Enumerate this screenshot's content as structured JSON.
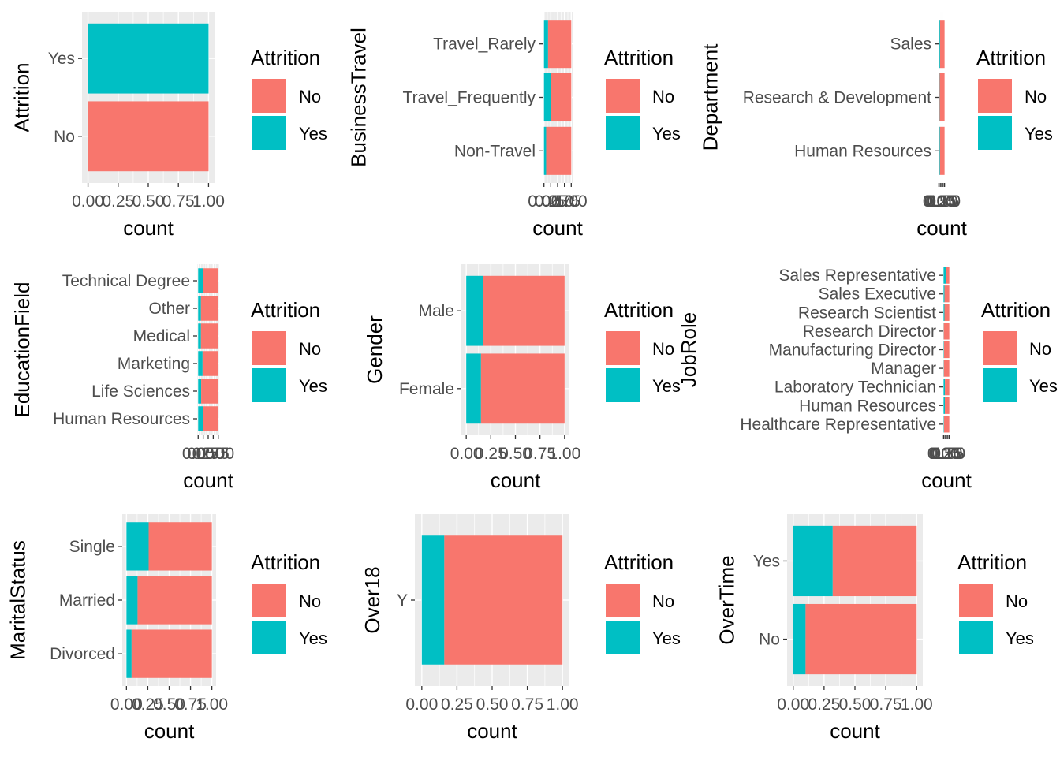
{
  "colors": {
    "No": "#F8766D",
    "Yes": "#00BFC4",
    "panel_bg": "#EBEBEB",
    "grid": "#FFFFFF",
    "tick_text": "#4D4D4D",
    "axis_title": "#000000"
  },
  "legend": {
    "title": "Attrition",
    "entries": [
      {
        "key": "No",
        "label": "No"
      },
      {
        "key": "Yes",
        "label": "Yes"
      }
    ]
  },
  "chart_data": [
    {
      "type": "bar",
      "orientation": "horizontal",
      "position": "fill",
      "ylabel": "Attrition",
      "xlabel": "count",
      "categories": [
        "No",
        "Yes"
      ],
      "x_ticks": [
        "0.00",
        "0.25",
        "0.50",
        "0.75",
        "1.00"
      ],
      "xlim": [
        0,
        1
      ],
      "series": [
        {
          "name": "No",
          "values": [
            1,
            0
          ]
        },
        {
          "name": "Yes",
          "values": [
            0,
            1
          ]
        }
      ],
      "legend_position": "right"
    },
    {
      "type": "bar",
      "orientation": "horizontal",
      "position": "fill",
      "ylabel": "BusinessTravel",
      "xlabel": "count",
      "categories": [
        "Non-Travel",
        "Travel_Frequently",
        "Travel_Rarely"
      ],
      "x_ticks": [
        "0.00",
        "0.25",
        "0.50",
        "0.75",
        "1.00"
      ],
      "xlim": [
        0,
        1
      ],
      "series": [
        {
          "name": "No",
          "values": [
            0.92,
            0.75,
            0.85
          ]
        },
        {
          "name": "Yes",
          "values": [
            0.08,
            0.25,
            0.15
          ]
        }
      ],
      "legend_position": "right"
    },
    {
      "type": "bar",
      "orientation": "horizontal",
      "position": "fill",
      "ylabel": "Department",
      "xlabel": "count",
      "categories": [
        "Human Resources",
        "Research & Development",
        "Sales"
      ],
      "x_ticks": [
        "0.00",
        "0.25",
        "0.50",
        "0.75",
        "1.00"
      ],
      "xlim": [
        0,
        1
      ],
      "series": [
        {
          "name": "No",
          "values": [
            0.81,
            0.86,
            0.79
          ]
        },
        {
          "name": "Yes",
          "values": [
            0.19,
            0.14,
            0.21
          ]
        }
      ],
      "legend_position": "right"
    },
    {
      "type": "bar",
      "orientation": "horizontal",
      "position": "fill",
      "ylabel": "EducationField",
      "xlabel": "count",
      "categories": [
        "Human Resources",
        "Life Sciences",
        "Marketing",
        "Medical",
        "Other",
        "Technical Degree"
      ],
      "x_ticks": [
        "0.00",
        "0.25",
        "0.50",
        "0.75",
        "1.00"
      ],
      "xlim": [
        0,
        1
      ],
      "series": [
        {
          "name": "No",
          "values": [
            0.74,
            0.85,
            0.78,
            0.86,
            0.86,
            0.76
          ]
        },
        {
          "name": "Yes",
          "values": [
            0.26,
            0.15,
            0.22,
            0.14,
            0.14,
            0.24
          ]
        }
      ],
      "legend_position": "right"
    },
    {
      "type": "bar",
      "orientation": "horizontal",
      "position": "fill",
      "ylabel": "Gender",
      "xlabel": "count",
      "categories": [
        "Female",
        "Male"
      ],
      "x_ticks": [
        "0.00",
        "0.25",
        "0.50",
        "0.75",
        "1.00"
      ],
      "xlim": [
        0,
        1
      ],
      "series": [
        {
          "name": "No",
          "values": [
            0.85,
            0.83
          ]
        },
        {
          "name": "Yes",
          "values": [
            0.15,
            0.17
          ]
        }
      ],
      "legend_position": "right"
    },
    {
      "type": "bar",
      "orientation": "horizontal",
      "position": "fill",
      "ylabel": "JobRole",
      "xlabel": "count",
      "categories": [
        "Healthcare Representative",
        "Human Resources",
        "Laboratory Technician",
        "Manager",
        "Manufacturing Director",
        "Research Director",
        "Research Scientist",
        "Sales Executive",
        "Sales Representative"
      ],
      "x_ticks": [
        "0.00",
        "0.25",
        "0.50",
        "0.75",
        "1.00"
      ],
      "xlim": [
        0,
        1
      ],
      "series": [
        {
          "name": "No",
          "values": [
            0.93,
            0.77,
            0.76,
            0.95,
            0.93,
            0.97,
            0.84,
            0.83,
            0.6
          ]
        },
        {
          "name": "Yes",
          "values": [
            0.07,
            0.23,
            0.24,
            0.05,
            0.07,
            0.03,
            0.16,
            0.17,
            0.4
          ]
        }
      ],
      "legend_position": "right"
    },
    {
      "type": "bar",
      "orientation": "horizontal",
      "position": "fill",
      "ylabel": "MaritalStatus",
      "xlabel": "count",
      "categories": [
        "Divorced",
        "Married",
        "Single"
      ],
      "x_ticks": [
        "0.00",
        "0.25",
        "0.50",
        "0.75",
        "1.00"
      ],
      "xlim": [
        0,
        1
      ],
      "series": [
        {
          "name": "No",
          "values": [
            0.94,
            0.87,
            0.74
          ]
        },
        {
          "name": "Yes",
          "values": [
            0.06,
            0.13,
            0.26
          ]
        }
      ],
      "legend_position": "right"
    },
    {
      "type": "bar",
      "orientation": "horizontal",
      "position": "fill",
      "ylabel": "Over18",
      "xlabel": "count",
      "categories": [
        "Y"
      ],
      "x_ticks": [
        "0.00",
        "0.25",
        "0.50",
        "0.75",
        "1.00"
      ],
      "xlim": [
        0,
        1
      ],
      "series": [
        {
          "name": "No",
          "values": [
            0.84
          ]
        },
        {
          "name": "Yes",
          "values": [
            0.16
          ]
        }
      ],
      "legend_position": "right"
    },
    {
      "type": "bar",
      "orientation": "horizontal",
      "position": "fill",
      "ylabel": "OverTime",
      "xlabel": "count",
      "categories": [
        "No",
        "Yes"
      ],
      "x_ticks": [
        "0.00",
        "0.25",
        "0.50",
        "0.75",
        "1.00"
      ],
      "xlim": [
        0,
        1
      ],
      "series": [
        {
          "name": "No",
          "values": [
            0.9,
            0.68
          ]
        },
        {
          "name": "Yes",
          "values": [
            0.1,
            0.32
          ]
        }
      ],
      "legend_position": "right"
    }
  ]
}
